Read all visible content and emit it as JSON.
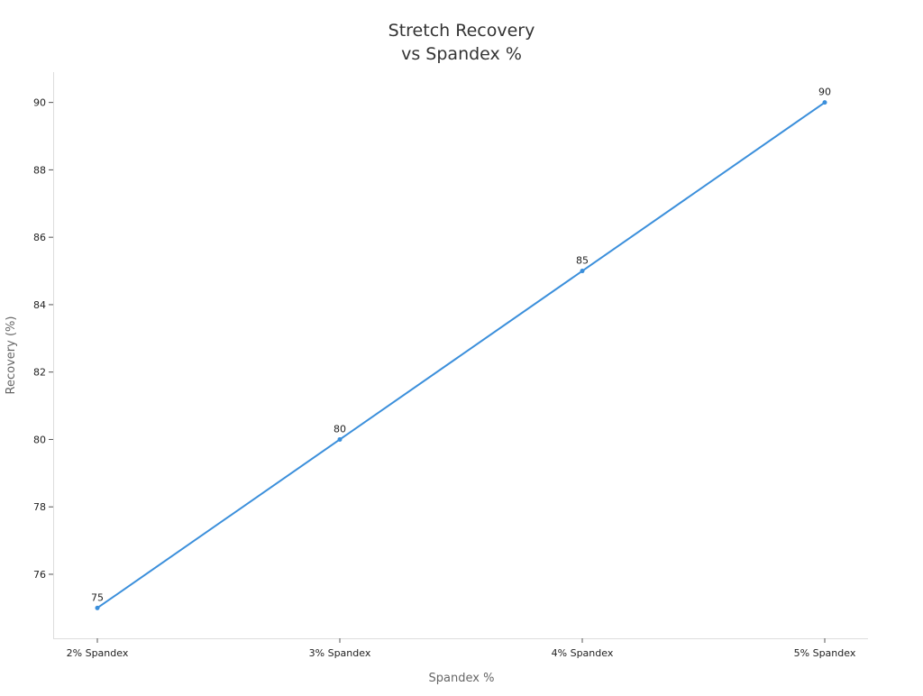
{
  "chart_data": {
    "type": "line",
    "title_lines": [
      "Stretch Recovery",
      "vs Spandex %"
    ],
    "xlabel": "Spandex %",
    "ylabel": "Recovery (%)",
    "categories": [
      "2% Spandex",
      "3% Spandex",
      "4% Spandex",
      "5% Spandex"
    ],
    "series": [
      {
        "values": [
          75,
          80,
          85,
          90
        ],
        "color": "#3b8fdb"
      }
    ],
    "data_labels": [
      "75",
      "80",
      "85",
      "90"
    ],
    "ylim": [
      74.1,
      90.9
    ],
    "y_ticks": [
      76,
      78,
      80,
      82,
      84,
      86,
      88,
      90
    ],
    "y_tick_labels": [
      "76",
      "78",
      "80",
      "82",
      "84",
      "86",
      "88",
      "90"
    ],
    "grid": false,
    "legend": "none"
  }
}
